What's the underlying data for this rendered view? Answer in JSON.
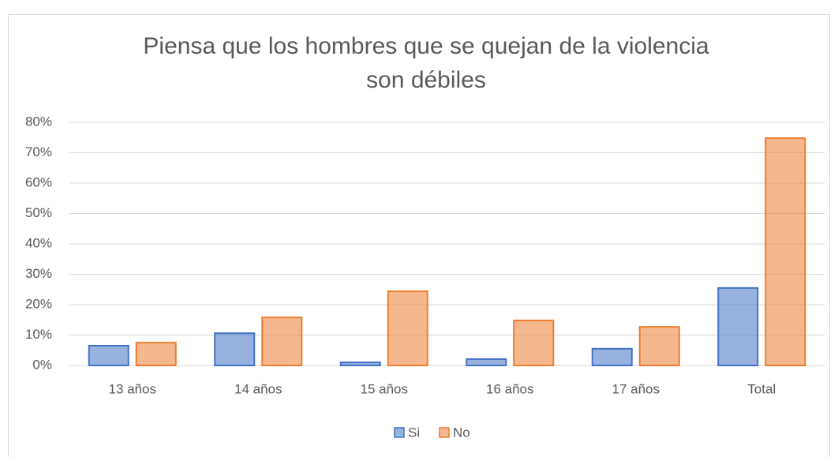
{
  "chart_data": {
    "type": "bar",
    "title": "Piensa que los hombres que se quejan de la violencia son débiles",
    "title_lines": [
      "Piensa que los hombres que se quejan de la violencia",
      "son débiles"
    ],
    "categories": [
      "13 años",
      "14 años",
      "15 años",
      "16 años",
      "17 años",
      "Total"
    ],
    "series": [
      {
        "name": "Si",
        "color": "#4472c4",
        "values": [
          6.5,
          10.6,
          1.0,
          2.1,
          5.5,
          25.5
        ]
      },
      {
        "name": "No",
        "color": "#ed7d31",
        "values": [
          7.5,
          15.8,
          24.4,
          14.8,
          12.7,
          74.8
        ]
      }
    ],
    "ylim": [
      0,
      80
    ],
    "yticks": [
      {
        "value": 0,
        "label": "0%"
      },
      {
        "value": 10,
        "label": "10%"
      },
      {
        "value": 20,
        "label": "20%"
      },
      {
        "value": 30,
        "label": "30%"
      },
      {
        "value": 40,
        "label": "40%"
      },
      {
        "value": 50,
        "label": "50%"
      },
      {
        "value": 60,
        "label": "60%"
      },
      {
        "value": 70,
        "label": "70%"
      },
      {
        "value": 80,
        "label": "80%"
      }
    ],
    "grid": true,
    "legend": "bottom"
  }
}
